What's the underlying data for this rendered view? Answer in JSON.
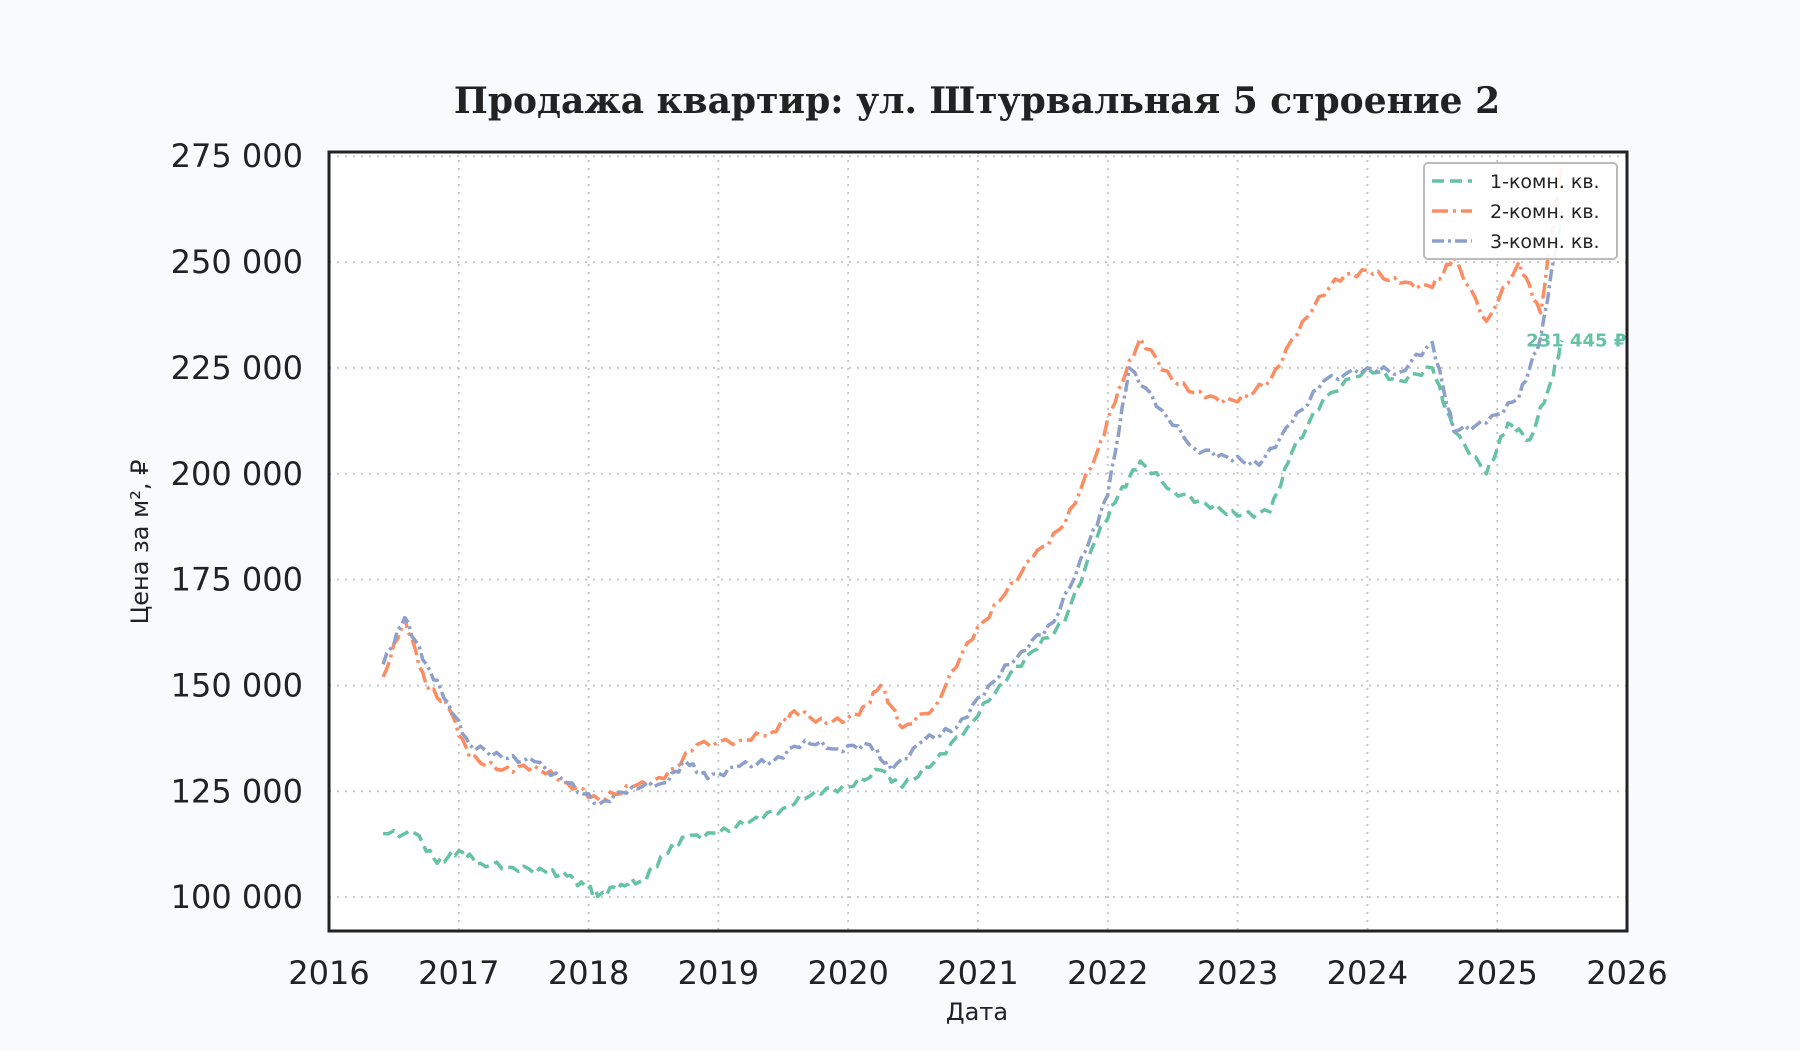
{
  "chart_data": {
    "type": "line",
    "title": "Продажа квартир: ул. Штурвальная 5 строение 2",
    "xlabel": "Дата",
    "ylabel": "Цена за м², ₽",
    "xlim": [
      2016,
      2026
    ],
    "ylim": [
      92000,
      276000
    ],
    "x_ticks": [
      "2016",
      "2017",
      "2018",
      "2019",
      "2020",
      "2021",
      "2022",
      "2023",
      "2024",
      "2025",
      "2026"
    ],
    "y_ticks": [
      {
        "value": 100000,
        "label": "100 000"
      },
      {
        "value": 125000,
        "label": "125 000"
      },
      {
        "value": 150000,
        "label": "150 000"
      },
      {
        "value": 175000,
        "label": "175 000"
      },
      {
        "value": 200000,
        "label": "200 000"
      },
      {
        "value": 225000,
        "label": "225 000"
      },
      {
        "value": 250000,
        "label": "250 000"
      },
      {
        "value": 275000,
        "label": "275 000"
      }
    ],
    "grid": true,
    "legend_position": "top-right",
    "series": [
      {
        "name": "1-комн. кв.",
        "color": "#66c2a5",
        "dash": "12 6",
        "end_label": "231 445 ₽",
        "points": [
          [
            "2016-06",
            115000
          ],
          [
            "2016-09",
            115000
          ],
          [
            "2016-11",
            108000
          ],
          [
            "2017-01",
            111000
          ],
          [
            "2017-03",
            108000
          ],
          [
            "2017-06",
            107000
          ],
          [
            "2017-09",
            106000
          ],
          [
            "2017-11",
            105000
          ],
          [
            "2018-01",
            102000
          ],
          [
            "2018-02",
            100500
          ],
          [
            "2018-04",
            103000
          ],
          [
            "2018-06",
            104000
          ],
          [
            "2018-08",
            110000
          ],
          [
            "2018-10",
            114000
          ],
          [
            "2019-01",
            115000
          ],
          [
            "2019-04",
            118000
          ],
          [
            "2019-07",
            121000
          ],
          [
            "2019-10",
            125000
          ],
          [
            "2020-01",
            126000
          ],
          [
            "2020-04",
            130000
          ],
          [
            "2020-06",
            126000
          ],
          [
            "2020-09",
            132000
          ],
          [
            "2020-12",
            140000
          ],
          [
            "2021-03",
            150000
          ],
          [
            "2021-06",
            158000
          ],
          [
            "2021-09",
            165000
          ],
          [
            "2021-12",
            185000
          ],
          [
            "2022-02",
            195000
          ],
          [
            "2022-04",
            203000
          ],
          [
            "2022-07",
            196000
          ],
          [
            "2022-10",
            193000
          ],
          [
            "2023-01",
            190000
          ],
          [
            "2023-04",
            191000
          ],
          [
            "2023-06",
            205000
          ],
          [
            "2023-09",
            218000
          ],
          [
            "2024-01",
            225000
          ],
          [
            "2024-04",
            222000
          ],
          [
            "2024-07",
            225000
          ],
          [
            "2024-09",
            210000
          ],
          [
            "2024-12",
            200000
          ],
          [
            "2025-02",
            212000
          ],
          [
            "2025-04",
            208000
          ],
          [
            "2025-06",
            222000
          ],
          [
            "2025-07",
            231445
          ]
        ]
      },
      {
        "name": "2-комн. кв.",
        "color": "#fc8d62",
        "dash": "16 5 3 5",
        "end_label": "",
        "points": [
          [
            "2016-06",
            152000
          ],
          [
            "2016-08",
            166000
          ],
          [
            "2016-10",
            150000
          ],
          [
            "2016-12",
            145000
          ],
          [
            "2017-02",
            133000
          ],
          [
            "2017-05",
            130000
          ],
          [
            "2017-08",
            131000
          ],
          [
            "2017-11",
            127000
          ],
          [
            "2018-02",
            123000
          ],
          [
            "2018-05",
            126000
          ],
          [
            "2018-08",
            128000
          ],
          [
            "2018-11",
            136000
          ],
          [
            "2019-03",
            137000
          ],
          [
            "2019-06",
            139000
          ],
          [
            "2019-08",
            144000
          ],
          [
            "2019-11",
            141000
          ],
          [
            "2020-02",
            143000
          ],
          [
            "2020-04",
            150000
          ],
          [
            "2020-06",
            140000
          ],
          [
            "2020-09",
            145000
          ],
          [
            "2020-12",
            160000
          ],
          [
            "2021-03",
            170000
          ],
          [
            "2021-06",
            180000
          ],
          [
            "2021-09",
            188000
          ],
          [
            "2021-12",
            205000
          ],
          [
            "2022-02",
            220000
          ],
          [
            "2022-04",
            232000
          ],
          [
            "2022-07",
            222000
          ],
          [
            "2022-10",
            218000
          ],
          [
            "2023-01",
            217000
          ],
          [
            "2023-04",
            222000
          ],
          [
            "2023-07",
            236000
          ],
          [
            "2023-10",
            246000
          ],
          [
            "2024-01",
            248000
          ],
          [
            "2024-04",
            245000
          ],
          [
            "2024-07",
            244000
          ],
          [
            "2024-09",
            251000
          ],
          [
            "2024-12",
            236000
          ],
          [
            "2025-03",
            250000
          ],
          [
            "2025-05",
            238000
          ],
          [
            "2025-07",
            273000
          ]
        ]
      },
      {
        "name": "3-комн. кв.",
        "color": "#8da0cb",
        "dash": "12 4 3 4",
        "end_label": "",
        "points": [
          [
            "2016-06",
            155000
          ],
          [
            "2016-08",
            166000
          ],
          [
            "2016-10",
            155000
          ],
          [
            "2016-12",
            146000
          ],
          [
            "2017-02",
            136000
          ],
          [
            "2017-05",
            133000
          ],
          [
            "2017-08",
            132000
          ],
          [
            "2017-11",
            127000
          ],
          [
            "2018-02",
            122000
          ],
          [
            "2018-05",
            126000
          ],
          [
            "2018-08",
            127000
          ],
          [
            "2018-10",
            132000
          ],
          [
            "2018-12",
            128000
          ],
          [
            "2019-03",
            131000
          ],
          [
            "2019-06",
            132000
          ],
          [
            "2019-09",
            137000
          ],
          [
            "2019-12",
            135000
          ],
          [
            "2020-03",
            136000
          ],
          [
            "2020-05",
            130000
          ],
          [
            "2020-08",
            137000
          ],
          [
            "2020-11",
            140000
          ],
          [
            "2021-02",
            150000
          ],
          [
            "2021-05",
            158000
          ],
          [
            "2021-08",
            165000
          ],
          [
            "2021-11",
            182000
          ],
          [
            "2022-01",
            195000
          ],
          [
            "2022-03",
            225000
          ],
          [
            "2022-06",
            215000
          ],
          [
            "2022-09",
            206000
          ],
          [
            "2022-12",
            204000
          ],
          [
            "2023-03",
            202000
          ],
          [
            "2023-06",
            212000
          ],
          [
            "2023-09",
            222000
          ],
          [
            "2024-01",
            225000
          ],
          [
            "2024-04",
            224000
          ],
          [
            "2024-07",
            231000
          ],
          [
            "2024-09",
            210000
          ],
          [
            "2024-12",
            212000
          ],
          [
            "2025-03",
            218000
          ],
          [
            "2025-05",
            232000
          ],
          [
            "2025-07",
            262000
          ]
        ]
      }
    ]
  }
}
